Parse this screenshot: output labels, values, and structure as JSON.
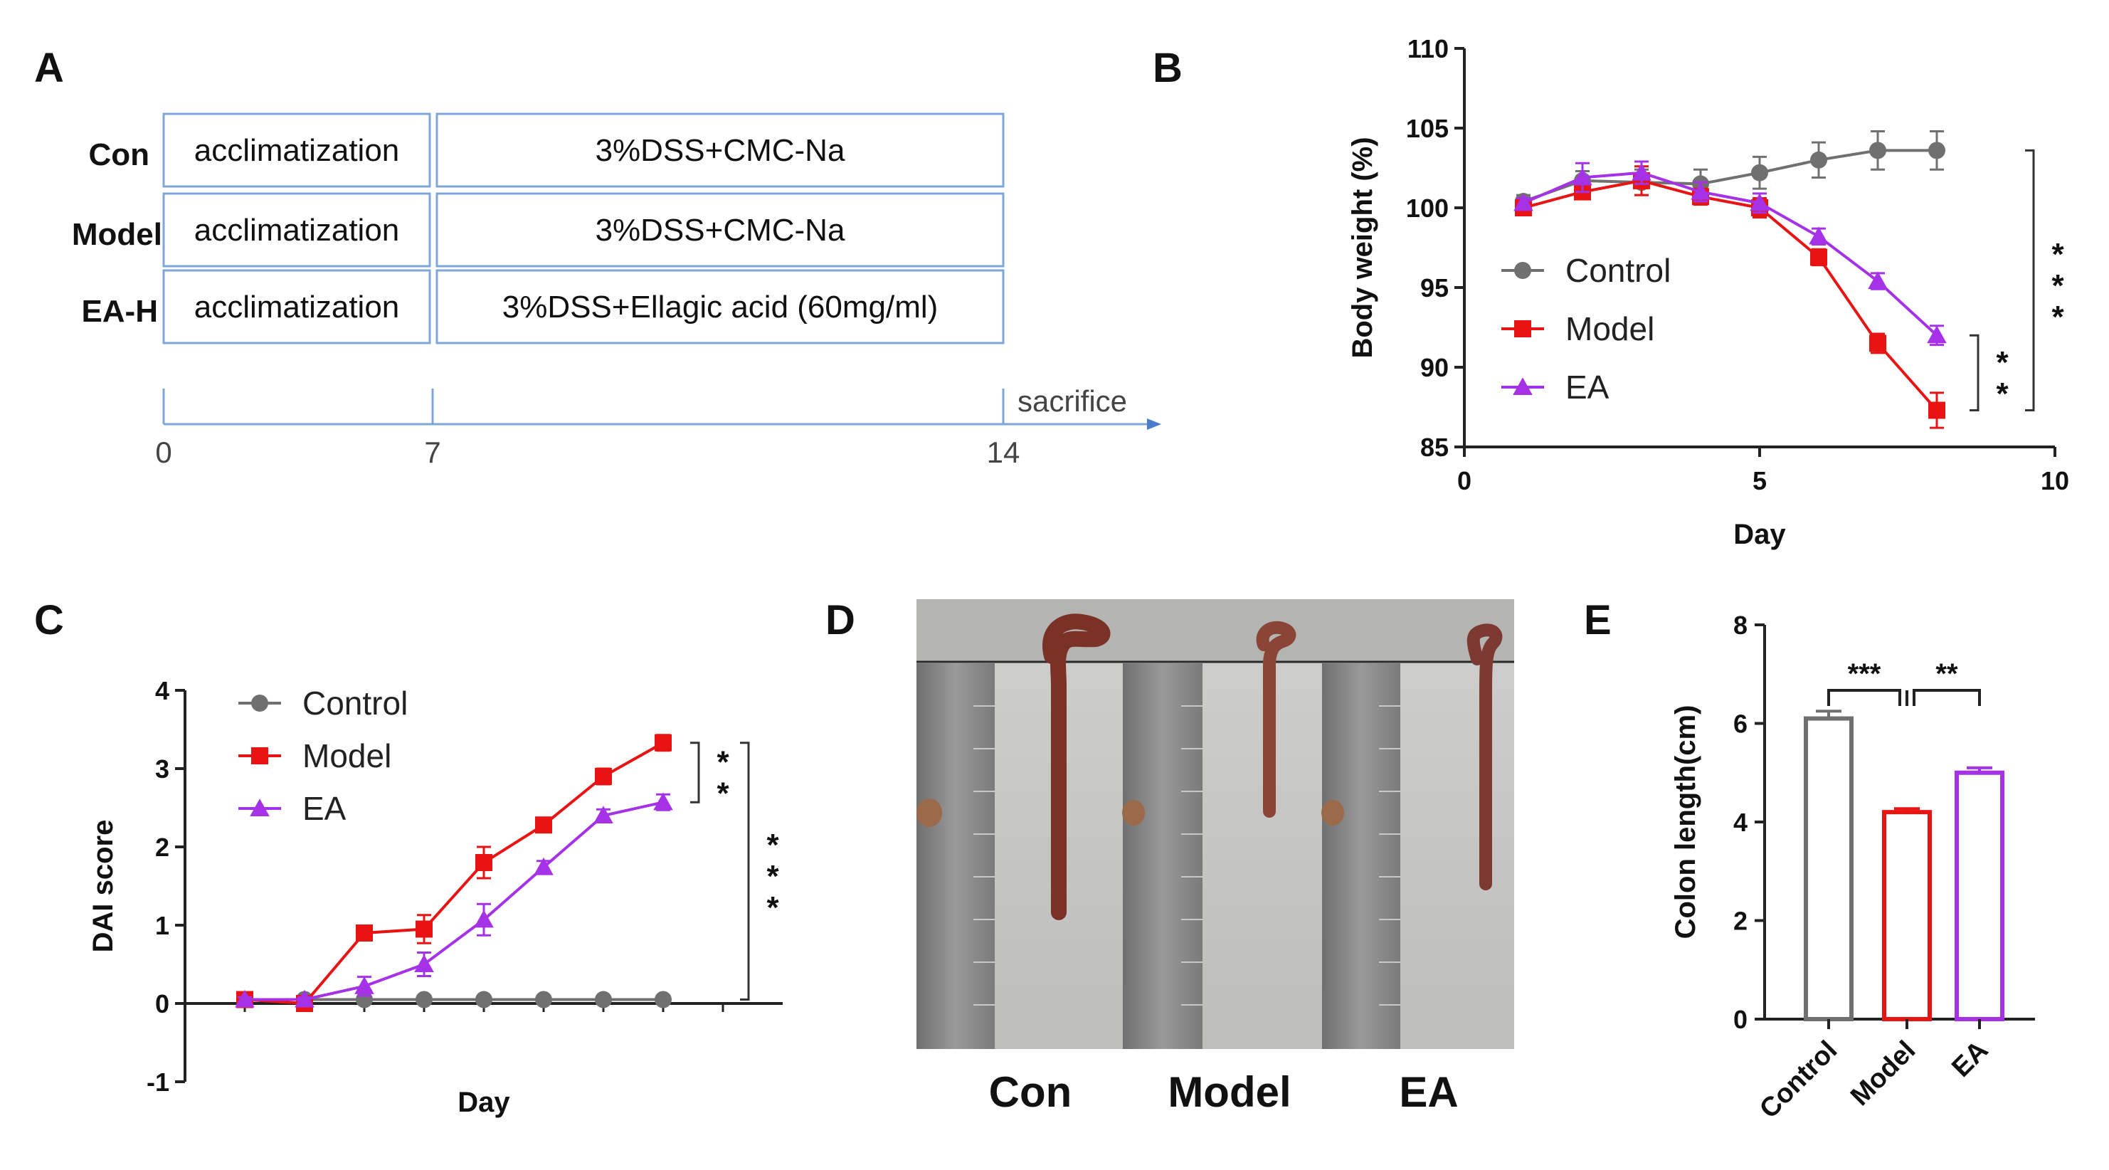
{
  "panels": {
    "A": {
      "letter": "A"
    },
    "B": {
      "letter": "B"
    },
    "C": {
      "letter": "C"
    },
    "D": {
      "letter": "D"
    },
    "E": {
      "letter": "E"
    }
  },
  "schedule": {
    "rows": [
      {
        "group": "Con",
        "phase1": "acclimatization",
        "phase2": "3%DSS+CMC-Na"
      },
      {
        "group": "Model",
        "phase1": "acclimatization",
        "phase2": "3%DSS+CMC-Na"
      },
      {
        "group": "EA-H",
        "phase1": "acclimatization",
        "phase2": "3%DSS+Ellagic acid (60mg/ml)"
      }
    ],
    "timeline": {
      "ticks": [
        "0",
        "7",
        "14"
      ],
      "end_label": "sacrifice"
    }
  },
  "photo": {
    "labels": [
      "Con",
      "Model",
      "EA"
    ]
  },
  "colors": {
    "control": "#707070",
    "model": "#e81414",
    "ea": "#a632e8"
  },
  "chart_data": [
    {
      "id": "B",
      "type": "line",
      "title": "",
      "xlabel": "Day",
      "ylabel": "Body weight (%)",
      "xlim": [
        0,
        10
      ],
      "ylim": [
        85,
        110
      ],
      "xticks": [
        "0",
        "5",
        "10"
      ],
      "yticks": [
        "85",
        "90",
        "95",
        "100",
        "105",
        "110"
      ],
      "legend": "center-left",
      "x": [
        1,
        2,
        3,
        4,
        5,
        6,
        7,
        8
      ],
      "series": [
        {
          "name": "Control",
          "marker": "circle",
          "values": [
            100.4,
            101.7,
            101.6,
            101.5,
            102.2,
            103.0,
            103.6,
            103.6
          ],
          "err": [
            0.4,
            0.6,
            0.8,
            0.9,
            1.0,
            1.1,
            1.2,
            1.2
          ]
        },
        {
          "name": "Model",
          "marker": "square",
          "values": [
            100.0,
            101.0,
            101.7,
            100.7,
            100.0,
            96.9,
            91.5,
            87.3
          ],
          "err": [
            0.3,
            0.4,
            0.9,
            0.5,
            0.6,
            0.5,
            0.6,
            1.1
          ]
        },
        {
          "name": "EA",
          "marker": "triangle",
          "values": [
            100.3,
            101.9,
            102.2,
            101.0,
            100.3,
            98.2,
            95.4,
            92.0
          ],
          "err": [
            0.3,
            0.9,
            0.7,
            0.6,
            0.6,
            0.5,
            0.5,
            0.6
          ]
        }
      ],
      "significance": [
        {
          "between": [
            "Model",
            "EA"
          ],
          "label": "**"
        },
        {
          "between": [
            "Control",
            "Model"
          ],
          "label": "***"
        }
      ]
    },
    {
      "id": "C",
      "type": "line",
      "title": "",
      "xlabel": "Day",
      "ylabel": "DAI score",
      "xlim": [
        0,
        10
      ],
      "ylim": [
        -1,
        4
      ],
      "yticks": [
        "-1",
        "0",
        "1",
        "2",
        "3",
        "4"
      ],
      "legend": "top-left",
      "x": [
        1,
        2,
        3,
        4,
        5,
        6,
        7,
        8
      ],
      "series": [
        {
          "name": "Control",
          "marker": "circle",
          "values": [
            0.05,
            0.05,
            0.05,
            0.05,
            0.05,
            0.05,
            0.05,
            0.05
          ],
          "err": [
            0,
            0,
            0,
            0,
            0,
            0,
            0,
            0
          ]
        },
        {
          "name": "Model",
          "marker": "square",
          "values": [
            0.05,
            0.0,
            0.9,
            0.95,
            1.8,
            2.28,
            2.9,
            3.33
          ],
          "err": [
            0.03,
            0.03,
            0.06,
            0.18,
            0.2,
            0.08,
            0.1,
            0.1
          ]
        },
        {
          "name": "EA",
          "marker": "triangle",
          "values": [
            0.05,
            0.05,
            0.22,
            0.5,
            1.07,
            1.74,
            2.4,
            2.57
          ],
          "err": [
            0.03,
            0.03,
            0.12,
            0.15,
            0.2,
            0.08,
            0.08,
            0.1
          ]
        }
      ],
      "significance": [
        {
          "between": [
            "Model",
            "EA"
          ],
          "label": "**"
        },
        {
          "between": [
            "Model",
            "Control"
          ],
          "label": "***"
        }
      ]
    },
    {
      "id": "E",
      "type": "bar",
      "title": "",
      "xlabel": "",
      "ylabel": "Colon length(cm)",
      "ylim": [
        0,
        8
      ],
      "yticks": [
        "0",
        "2",
        "4",
        "6",
        "8"
      ],
      "categories": [
        "Control",
        "Model",
        "EA"
      ],
      "values": [
        6.1,
        4.2,
        5.0
      ],
      "err": [
        0.15,
        0.07,
        0.1
      ],
      "significance": [
        {
          "between": [
            "Control",
            "Model"
          ],
          "label": "***"
        },
        {
          "between": [
            "Model",
            "EA"
          ],
          "label": "**"
        }
      ]
    }
  ]
}
